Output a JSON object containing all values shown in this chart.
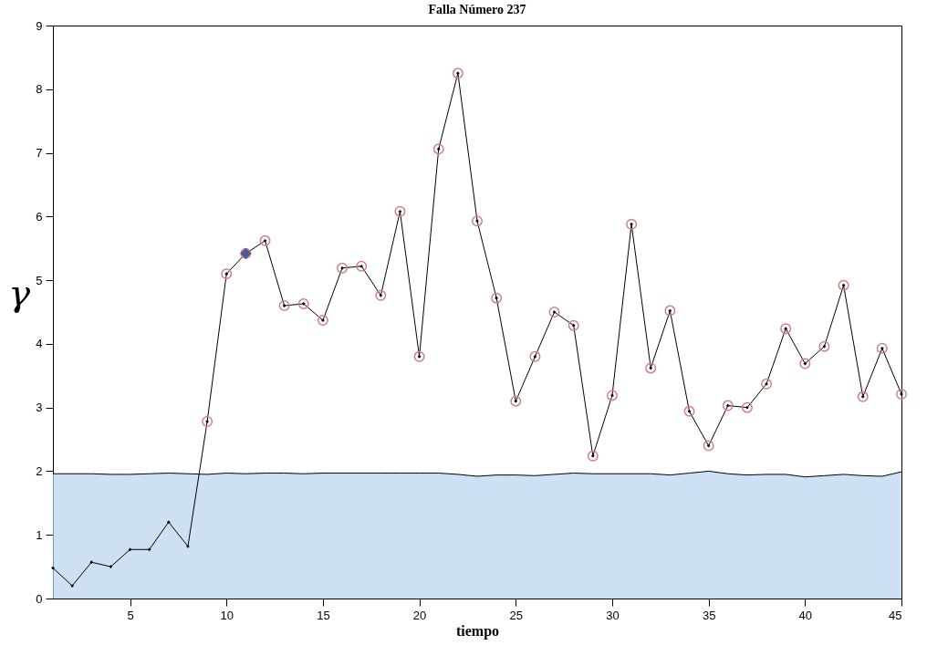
{
  "chart_data": {
    "type": "line",
    "title": "Falla Número 237",
    "xlabel": "tiempo",
    "ylabel": "γ",
    "x": [
      1,
      2,
      3,
      4,
      5,
      6,
      7,
      8,
      9,
      10,
      11,
      12,
      13,
      14,
      15,
      16,
      17,
      18,
      19,
      20,
      21,
      22,
      23,
      24,
      25,
      26,
      27,
      28,
      29,
      30,
      31,
      32,
      33,
      34,
      35,
      36,
      37,
      38,
      39,
      40,
      41,
      42,
      43,
      44,
      45
    ],
    "series": [
      {
        "type": "area",
        "color": "#b9d3f0",
        "values": [
          1.96,
          1.96,
          1.96,
          1.95,
          1.95,
          1.96,
          1.97,
          1.96,
          1.95,
          1.97,
          1.96,
          1.97,
          1.97,
          1.96,
          1.97,
          1.97,
          1.97,
          1.97,
          1.97,
          1.97,
          1.97,
          1.95,
          1.92,
          1.94,
          1.94,
          1.93,
          1.95,
          1.97,
          1.96,
          1.96,
          1.96,
          1.96,
          1.94,
          1.97,
          2.0,
          1.96,
          1.94,
          1.95,
          1.95,
          1.91,
          1.93,
          1.95,
          1.93,
          1.92,
          1.99
        ]
      },
      {
        "color": "#000000",
        "marker": "diamond",
        "values": [
          0.48,
          0.2,
          0.57,
          0.5,
          0.77,
          0.77,
          1.2,
          0.82,
          2.78,
          5.1,
          5.42,
          5.62,
          4.6,
          4.63,
          4.37,
          5.19,
          5.22,
          4.76,
          6.08,
          3.8,
          7.06,
          8.25,
          5.93,
          4.72,
          3.1,
          3.8,
          4.5,
          4.29,
          2.24,
          3.19,
          5.88,
          3.62,
          4.52,
          2.94,
          2.4,
          3.03,
          3.0,
          3.37,
          4.24,
          3.69,
          3.96,
          4.92,
          3.17,
          3.93,
          3.21
        ]
      },
      {
        "type": "scatter",
        "color": "#d08080",
        "marker": "circle",
        "values": [
          null,
          null,
          null,
          null,
          null,
          null,
          null,
          null,
          2.78,
          5.1,
          5.42,
          5.62,
          4.6,
          4.63,
          4.37,
          5.19,
          5.22,
          4.76,
          6.08,
          3.8,
          7.06,
          8.25,
          5.93,
          4.72,
          3.1,
          3.8,
          4.5,
          4.29,
          2.24,
          3.19,
          5.88,
          3.62,
          4.52,
          2.94,
          2.4,
          3.03,
          3.0,
          3.37,
          4.24,
          3.69,
          3.96,
          4.92,
          3.17,
          3.93,
          3.21
        ]
      },
      {
        "type": "scatter",
        "color": "#4a5a9a",
        "marker": "diamond",
        "values": [
          null,
          null,
          null,
          null,
          null,
          null,
          null,
          null,
          null,
          null,
          5.42,
          null,
          null,
          null,
          null,
          null,
          null,
          null,
          null,
          null,
          null,
          null,
          null,
          null,
          null,
          null,
          null,
          null,
          null,
          null,
          null,
          null,
          null,
          null,
          null,
          null,
          null,
          null,
          null,
          null,
          null,
          null,
          null,
          null,
          null
        ]
      }
    ],
    "xlim": [
      1,
      45
    ],
    "xticks": [
      5,
      10,
      15,
      20,
      25,
      30,
      35,
      40,
      45
    ],
    "ylim": [
      0,
      9
    ],
    "yticks": [
      0,
      1,
      2,
      3,
      4,
      5,
      6,
      7,
      8,
      9
    ],
    "grid": false
  }
}
